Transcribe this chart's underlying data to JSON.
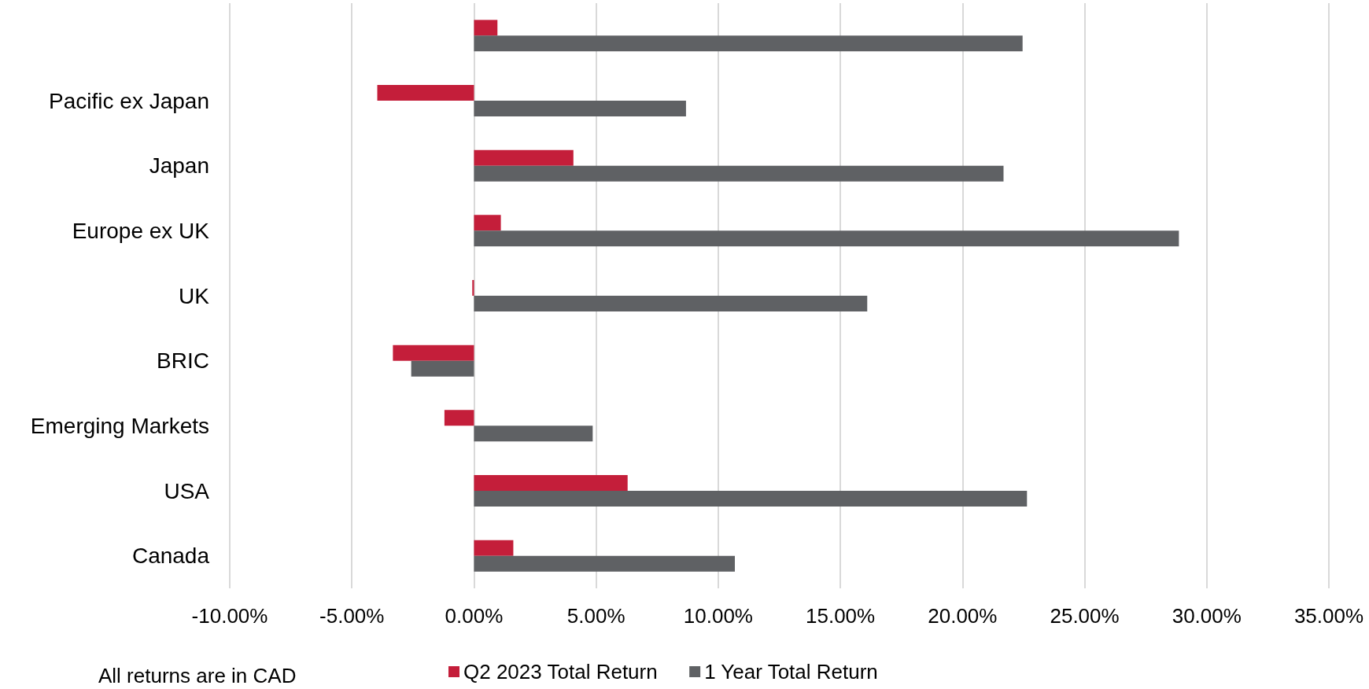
{
  "chart_data": {
    "type": "bar",
    "orientation": "horizontal",
    "categories": [
      null,
      "Pacific ex Japan",
      "Japan",
      "Europe ex UK",
      "UK",
      "BRIC",
      "Emerging Markets",
      "USA",
      "Canada"
    ],
    "series": [
      {
        "name": "Q2 2023 Total Return",
        "color": "#c41e3a",
        "values": [
          0.96,
          -3.96,
          4.07,
          1.1,
          -0.07,
          -3.32,
          -1.21,
          6.29,
          1.61
        ]
      },
      {
        "name": "1 Year Total Return",
        "color": "#5f6164",
        "values": [
          22.46,
          8.68,
          21.68,
          28.86,
          16.1,
          -2.57,
          4.86,
          22.64,
          10.68
        ]
      }
    ],
    "xlim": [
      -10,
      35
    ],
    "xticks": [
      {
        "value": -10,
        "label": "-10.00%"
      },
      {
        "value": -5,
        "label": "-5.00%"
      },
      {
        "value": 0,
        "label": "0.00%"
      },
      {
        "value": 5,
        "label": "5.00%"
      },
      {
        "value": 10,
        "label": "10.00%"
      },
      {
        "value": 15,
        "label": "15.00%"
      },
      {
        "value": 20,
        "label": "20.00%"
      },
      {
        "value": 25,
        "label": "25.00%"
      },
      {
        "value": 30,
        "label": "30.00%"
      },
      {
        "value": 35,
        "label": "35.00%"
      }
    ],
    "grid": "x",
    "legend": "bottom",
    "annotations": [
      "All returns are in CAD"
    ]
  }
}
